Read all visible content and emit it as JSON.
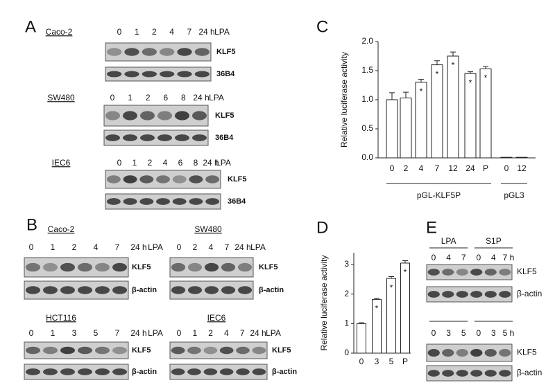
{
  "panel_labels": [
    "A",
    "B",
    "C",
    "D",
    "E"
  ],
  "blots": [
    {
      "cell_line": "Caco-2",
      "lanes": [
        "0",
        "1",
        "2",
        "4",
        "7",
        "24 h"
      ],
      "treatment": "LPA",
      "rows": [
        "KLF5",
        "36B4"
      ]
    },
    {
      "cell_line": "SW480",
      "lanes": [
        "0",
        "1",
        "2",
        "6",
        "8",
        "24 h"
      ],
      "treatment": "LPA",
      "rows": [
        "KLF5",
        "36B4"
      ]
    },
    {
      "cell_line": "IEC6",
      "lanes": [
        "0",
        "1",
        "2",
        "4",
        "6",
        "8",
        "24 h"
      ],
      "treatment": "LPA",
      "rows": [
        "KLF5",
        "36B4"
      ]
    },
    {
      "cell_line": "Caco-2",
      "lanes": [
        "0",
        "1",
        "2",
        "4",
        "7",
        "24 h"
      ],
      "treatment": "LPA",
      "rows": [
        "KLF5",
        "β-actin"
      ]
    },
    {
      "cell_line": "SW480",
      "lanes": [
        "0",
        "2",
        "4",
        "7",
        "24 h"
      ],
      "treatment": "LPA",
      "rows": [
        "KLF5",
        "β-actin"
      ]
    },
    {
      "cell_line": "HCT116",
      "lanes": [
        "0",
        "1",
        "3",
        "5",
        "7",
        "24 h"
      ],
      "treatment": "LPA",
      "rows": [
        "KLF5",
        "β-actin"
      ]
    },
    {
      "cell_line": "IEC6",
      "lanes": [
        "0",
        "1",
        "2",
        "4",
        "7",
        "24 h"
      ],
      "treatment": "LPA",
      "rows": [
        "KLF5",
        "β-actin"
      ]
    },
    {
      "groups": [
        "LPA",
        "S1P"
      ],
      "lanes": [
        "0",
        "4",
        "7",
        "0",
        "4",
        "7 h"
      ],
      "rows": [
        "KLF5",
        "β-actin"
      ]
    },
    {
      "lanes": [
        "0",
        "3",
        "5",
        "0",
        "3",
        "5 h"
      ],
      "rows": [
        "KLF5",
        "β-actin"
      ]
    }
  ],
  "chart_data": [
    {
      "type": "bar",
      "y_label": "Relative luciferase activity",
      "categories": [
        "0",
        "2",
        "4",
        "7",
        "12",
        "24",
        "P",
        "0",
        "12"
      ],
      "values": [
        1.0,
        1.03,
        1.3,
        1.6,
        1.75,
        1.45,
        1.53,
        0.01,
        0.01
      ],
      "errors": [
        0.12,
        0.1,
        0.05,
        0.07,
        0.07,
        0.03,
        0.04,
        null,
        null
      ],
      "markers": [
        null,
        null,
        "*",
        "*",
        "*",
        "*",
        "*",
        null,
        null
      ],
      "group_labels": [
        "pGL-KLF5P",
        "pGL3"
      ],
      "color": "#ffffff",
      "ylim": [
        0,
        2
      ],
      "yticks": [
        {
          "value": 0,
          "label": "0.0"
        },
        0.5,
        {
          "value": 1,
          "label": "1.0"
        },
        1.5,
        {
          "value": 2,
          "label": "2.0"
        }
      ]
    },
    {
      "type": "bar",
      "y_label": "Relative luciferase activity",
      "categories": [
        "0",
        "3",
        "5",
        "P"
      ],
      "values": [
        1.0,
        1.82,
        2.53,
        3.05
      ],
      "errors": [
        0.03,
        0.03,
        0.06,
        0.08
      ],
      "markers": [
        null,
        "*",
        "*",
        "*"
      ],
      "color": "#ffffff",
      "ylim": [
        0,
        3.4
      ],
      "yticks": [
        0,
        1,
        2,
        3
      ]
    }
  ]
}
